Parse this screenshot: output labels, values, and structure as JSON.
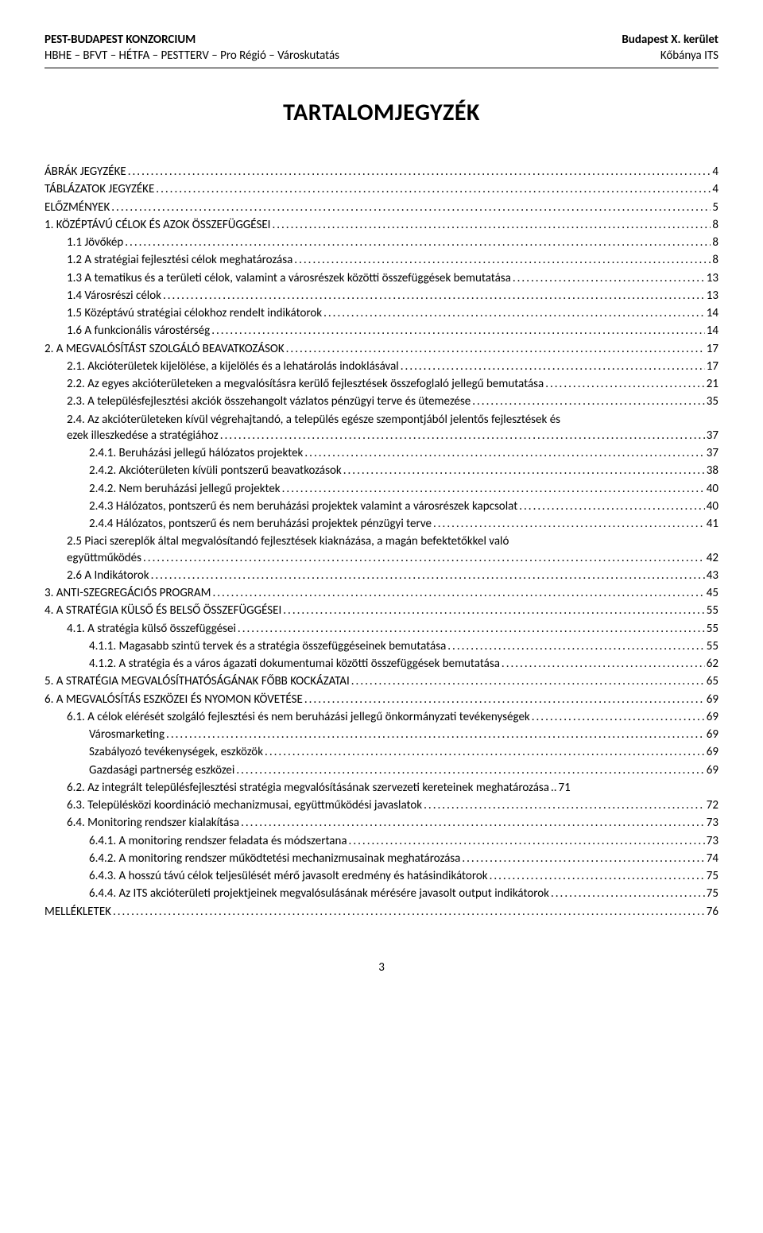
{
  "header": {
    "left_bold": "PEST-BUDAPEST KONZORCIUM",
    "right_bold": "Budapest X. kerület",
    "left_sub": "HBHE – BFVT – HÉTFA – PESTTERV – Pro Régió – Városkutatás",
    "right_sub": "Kőbánya ITS"
  },
  "title": "TARTALOMJEGYZÉK",
  "page_number": "3",
  "toc": [
    {
      "indent": 0,
      "label": "ÁBRÁK JEGYZÉKE",
      "page": "4"
    },
    {
      "indent": 0,
      "label": "TÁBLÁZATOK JEGYZÉKE",
      "page": "4"
    },
    {
      "indent": 0,
      "label": "ELŐZMÉNYEK",
      "page": "5"
    },
    {
      "indent": 0,
      "label": "1. KÖZÉPTÁVÚ CÉLOK ÉS AZOK ÖSSZEFÜGGÉSEI",
      "page": "8"
    },
    {
      "indent": 1,
      "label": "1.1 Jövőkép",
      "page": "8"
    },
    {
      "indent": 1,
      "label": "1.2 A stratégiai fejlesztési célok meghatározása",
      "page": "8"
    },
    {
      "indent": 1,
      "label": "1.3 A tematikus és a területi célok, valamint a városrészek közötti összefüggések bemutatása",
      "page": "13"
    },
    {
      "indent": 1,
      "label": "1.4 Városrészi célok",
      "page": "13"
    },
    {
      "indent": 1,
      "label": "1.5 Középtávú stratégiai célokhoz rendelt indikátorok",
      "page": "14"
    },
    {
      "indent": 1,
      "label": "1.6 A funkcionális várostérség",
      "page": "14"
    },
    {
      "indent": 0,
      "label": "2. A MEGVALÓSÍTÁST SZOLGÁLÓ BEAVATKOZÁSOK",
      "page": "17"
    },
    {
      "indent": 1,
      "label": "2.1. Akcióterületek kijelölése, a kijelölés és a lehatárolás indoklásával",
      "page": "17"
    },
    {
      "indent": 1,
      "label": "2.2. Az egyes akcióterületeken a megvalósításra kerülő fejlesztések összefoglaló jellegű bemutatása",
      "page": "21"
    },
    {
      "indent": 1,
      "label": "2.3. A településfejlesztési akciók összehangolt vázlatos pénzügyi terve és ütemezése",
      "page": "35"
    },
    {
      "indent": 1,
      "wrap": true,
      "line1": "2.4. Az akcióterületeken kívül végrehajtandó, a település egésze szempontjából jelentős fejlesztések és",
      "line2": "ezek illeszkedése a stratégiához",
      "page": "37"
    },
    {
      "indent": 2,
      "label": "2.4.1. Beruházási jellegű hálózatos projektek",
      "page": "37"
    },
    {
      "indent": 2,
      "label": "2.4.2. Akcióterületen kívüli pontszerű beavatkozások",
      "page": "38"
    },
    {
      "indent": 2,
      "label": "2.4.2. Nem beruházási jellegű projektek",
      "page": "40"
    },
    {
      "indent": 2,
      "label": "2.4.3 Hálózatos, pontszerű és nem beruházási projektek valamint a városrészek kapcsolat",
      "page": "40"
    },
    {
      "indent": 2,
      "label": "2.4.4 Hálózatos, pontszerű és nem beruházási projektek pénzügyi terve",
      "page": "41"
    },
    {
      "indent": 1,
      "wrap": true,
      "line1_just": true,
      "line1": "2.5  Piaci  szereplők  által  megvalósítandó  fejlesztések  kiaknázása,  a  magán  befektetőkkel  való",
      "line2": "együttműködés",
      "page": "42"
    },
    {
      "indent": 1,
      "label": "2.6 A Indikátorok",
      "page": "43"
    },
    {
      "indent": 0,
      "label": "3. ANTI-SZEGREGÁCIÓS PROGRAM",
      "page": "45"
    },
    {
      "indent": 0,
      "label": "4. A STRATÉGIA KÜLSŐ ÉS BELSŐ ÖSSZEFÜGGÉSEI",
      "page": "55"
    },
    {
      "indent": 1,
      "label": "4.1. A stratégia külső összefüggései",
      "page": "55"
    },
    {
      "indent": 2,
      "label": "4.1.1. Magasabb szintű tervek és a stratégia összefüggéseinek bemutatása",
      "page": "55"
    },
    {
      "indent": 2,
      "label": "4.1.2. A stratégia és a város ágazati dokumentumai közötti összefüggések bemutatása",
      "page": "62"
    },
    {
      "indent": 0,
      "label": "5. A STRATÉGIA MEGVALÓSÍTHATÓSÁGÁNAK FŐBB KOCKÁZATAI",
      "page": "65"
    },
    {
      "indent": 0,
      "label": "6. A MEGVALÓSÍTÁS ESZKÖZEI ÉS NYOMON KÖVETÉSE",
      "page": "69"
    },
    {
      "indent": 1,
      "label": "6.1. A célok elérését szolgáló fejlesztési és nem beruházási jellegű önkormányzati tevékenységek",
      "page": "69"
    },
    {
      "indent": 2,
      "label": "Városmarketing",
      "page": "69"
    },
    {
      "indent": 2,
      "label": "Szabályozó tevékenységek, eszközök",
      "page": "69"
    },
    {
      "indent": 2,
      "label": "Gazdasági partnerség eszközei",
      "page": "69"
    },
    {
      "indent": 1,
      "label": "6.2. Az integrált településfejlesztési stratégia megvalósításának szervezeti kereteinek meghatározása",
      "leader": "..",
      "page": "71"
    },
    {
      "indent": 1,
      "label": "6.3. Településközi koordináció mechanizmusai, együttműködési javaslatok",
      "page": "72"
    },
    {
      "indent": 1,
      "label": "6.4. Monitoring rendszer kialakítása",
      "page": "73"
    },
    {
      "indent": 2,
      "label": "6.4.1. A monitoring rendszer feladata és módszertana",
      "page": "73"
    },
    {
      "indent": 2,
      "label": "6.4.2. A monitoring rendszer működtetési mechanizmusainak meghatározása",
      "page": "74"
    },
    {
      "indent": 2,
      "label": "6.4.3. A hosszú távú célok teljesülését mérő javasolt eredmény és hatásindikátorok",
      "page": "75"
    },
    {
      "indent": 2,
      "label": "6.4.4. Az ITS akcióterületi projektjeinek megvalósulásának mérésére javasolt output indikátorok",
      "page": "75"
    },
    {
      "indent": 0,
      "label": "MELLÉKLETEK",
      "page": "76"
    }
  ]
}
